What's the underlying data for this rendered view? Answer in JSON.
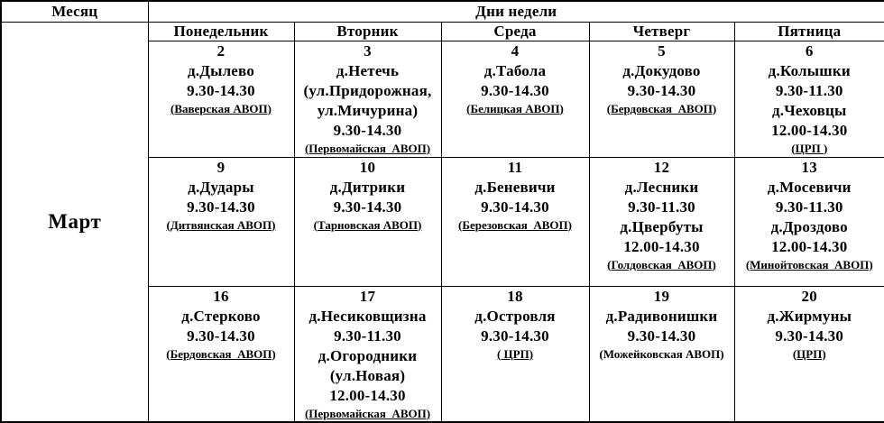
{
  "page": {
    "background_color": "#ffffff",
    "text_color": "#000000",
    "border_color": "#000000"
  },
  "table": {
    "month_header_label": "Месяц",
    "days_header_label": "Дни недели",
    "month_name": "Март",
    "day_names": [
      "Понедельник",
      "Вторник",
      "Среда",
      "Четверг",
      "Пятница"
    ],
    "weeks": [
      {
        "cells": [
          {
            "lines": [
              {
                "t": "2",
                "s": "num"
              },
              {
                "t": "д.Дылево",
                "s": "main"
              },
              {
                "t": "9.30-14.30",
                "s": "main"
              },
              {
                "t": "(Ваверская АВОП)",
                "s": "note"
              }
            ]
          },
          {
            "lines": [
              {
                "t": "3",
                "s": "num"
              },
              {
                "t": "д.Нетечь",
                "s": "main"
              },
              {
                "t": "(ул.Придорожная,",
                "s": "main"
              },
              {
                "t": "ул.Мичурина)",
                "s": "main"
              },
              {
                "t": "9.30-14.30",
                "s": "main"
              },
              {
                "t": "(Первомайская  АВОП)",
                "s": "note"
              }
            ]
          },
          {
            "lines": [
              {
                "t": "4",
                "s": "num"
              },
              {
                "t": "д.Табола",
                "s": "main"
              },
              {
                "t": "9.30-14.30",
                "s": "main"
              },
              {
                "t": "(Белицкая АВОП)",
                "s": "note"
              }
            ]
          },
          {
            "lines": [
              {
                "t": "5",
                "s": "num"
              },
              {
                "t": "д.Докудово",
                "s": "main"
              },
              {
                "t": "9.30-14.30",
                "s": "main"
              },
              {
                "t": "(Бердовская  АВОП)",
                "s": "note"
              }
            ]
          },
          {
            "lines": [
              {
                "t": "6",
                "s": "num"
              },
              {
                "t": "д.Колышки",
                "s": "main"
              },
              {
                "t": "9.30-11.30",
                "s": "main"
              },
              {
                "t": "д.Чеховцы",
                "s": "main"
              },
              {
                "t": "12.00-14.30",
                "s": "main"
              },
              {
                "t": "(ЦРП )",
                "s": "note"
              }
            ]
          }
        ]
      },
      {
        "cells": [
          {
            "lines": [
              {
                "t": "9",
                "s": "num"
              },
              {
                "t": "д.Дудары",
                "s": "main"
              },
              {
                "t": "9.30-14.30",
                "s": "main"
              },
              {
                "t": "(Дитвянская АВОП)",
                "s": "note"
              }
            ]
          },
          {
            "lines": [
              {
                "t": "10",
                "s": "num"
              },
              {
                "t": "д.Дитрики",
                "s": "main"
              },
              {
                "t": "9.30-14.30",
                "s": "main"
              },
              {
                "t": "(Тарновская АВОП)",
                "s": "note"
              }
            ]
          },
          {
            "lines": [
              {
                "t": "11",
                "s": "num"
              },
              {
                "t": "д.Беневичи",
                "s": "main"
              },
              {
                "t": "9.30-14.30",
                "s": "main"
              },
              {
                "t": "(Березовская  АВОП)",
                "s": "note"
              }
            ]
          },
          {
            "lines": [
              {
                "t": "12",
                "s": "num"
              },
              {
                "t": "д.Лесники",
                "s": "main"
              },
              {
                "t": "9.30-11.30",
                "s": "main"
              },
              {
                "t": "д.Цвербуты",
                "s": "main"
              },
              {
                "t": "12.00-14.30",
                "s": "main"
              },
              {
                "t": "(Голдовская  АВОП)",
                "s": "note"
              }
            ]
          },
          {
            "lines": [
              {
                "t": "13",
                "s": "num"
              },
              {
                "t": "д.Мосевичи",
                "s": "main"
              },
              {
                "t": "9.30-11.30",
                "s": "main"
              },
              {
                "t": "д.Дроздово",
                "s": "main"
              },
              {
                "t": "12.00-14.30",
                "s": "main"
              },
              {
                "t": "(Минойтовская  АВОП)",
                "s": "note"
              }
            ]
          }
        ]
      },
      {
        "cells": [
          {
            "lines": [
              {
                "t": "16",
                "s": "num"
              },
              {
                "t": "д.Стерково",
                "s": "main"
              },
              {
                "t": "9.30-14.30",
                "s": "main"
              },
              {
                "t": "(Бердовская  АВОП)",
                "s": "note"
              }
            ]
          },
          {
            "lines": [
              {
                "t": "17",
                "s": "num"
              },
              {
                "t": "д.Несиковщизна",
                "s": "main"
              },
              {
                "t": "9.30-11.30",
                "s": "main"
              },
              {
                "t": "д.Огородники",
                "s": "main"
              },
              {
                "t": "(ул.Новая)",
                "s": "main"
              },
              {
                "t": "12.00-14.30",
                "s": "main"
              },
              {
                "t": "(Первомайская  АВОП)",
                "s": "note"
              }
            ]
          },
          {
            "lines": [
              {
                "t": "18",
                "s": "num"
              },
              {
                "t": "д.Островля",
                "s": "main"
              },
              {
                "t": "9.30-14.30",
                "s": "main"
              },
              {
                "t": "( ЦРП)",
                "s": "note"
              }
            ]
          },
          {
            "lines": [
              {
                "t": "19",
                "s": "num"
              },
              {
                "t": "д.Радивонишки",
                "s": "main"
              },
              {
                "t": "9.30-14.30",
                "s": "main"
              },
              {
                "t": "(Можейковская АВОП)",
                "s": "note_plain"
              }
            ]
          },
          {
            "lines": [
              {
                "t": "20",
                "s": "num"
              },
              {
                "t": "д.Жирмуны",
                "s": "main"
              },
              {
                "t": "9.30-14.30",
                "s": "main"
              },
              {
                "t": "(ЦРП)",
                "s": "note"
              }
            ]
          }
        ]
      }
    ]
  }
}
